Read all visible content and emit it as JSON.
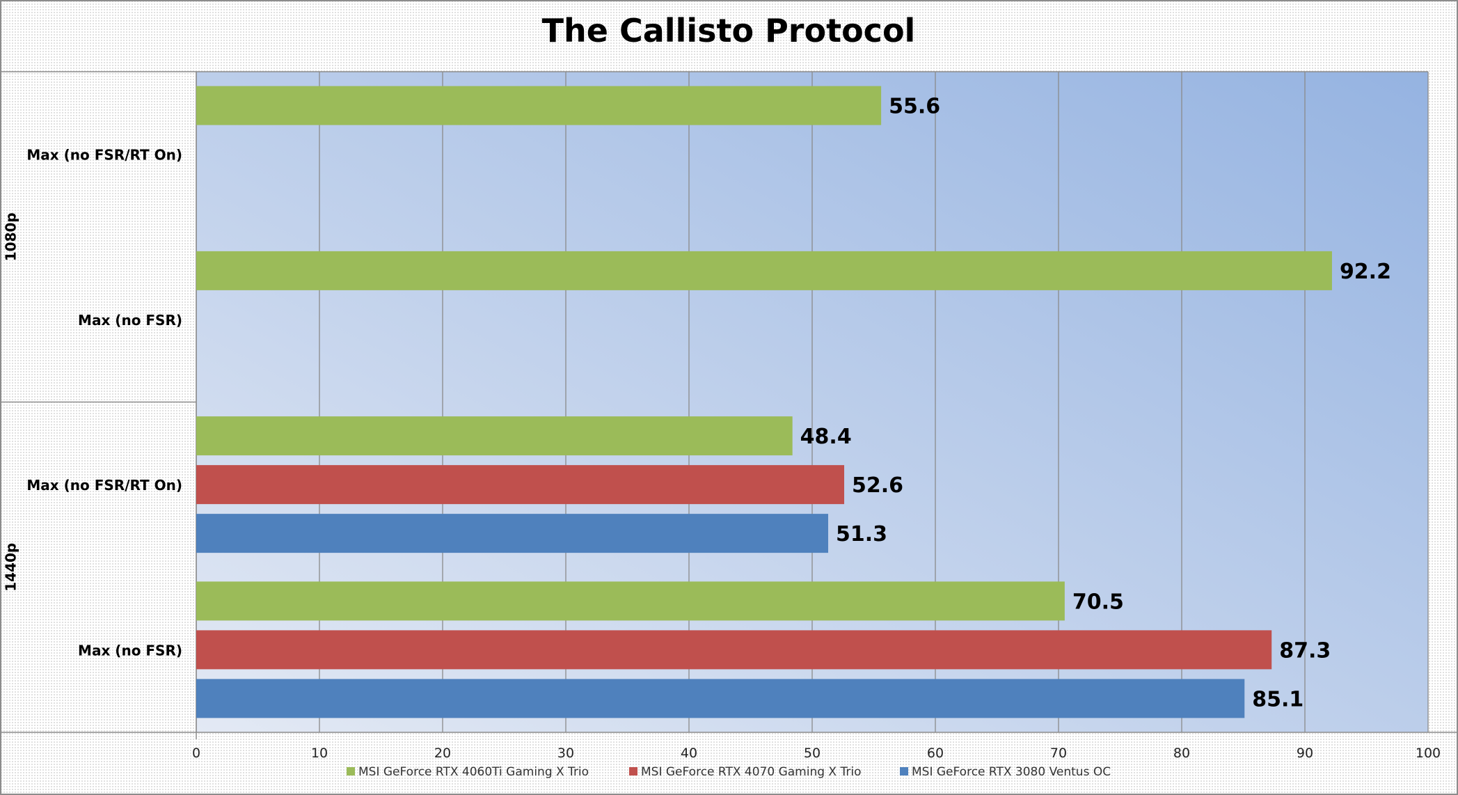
{
  "chart_data": {
    "type": "bar",
    "orientation": "horizontal",
    "title": "The Callisto Protocol",
    "xlim": [
      0,
      100
    ],
    "x_ticks": [
      "0",
      "10",
      "20",
      "30",
      "40",
      "50",
      "60",
      "70",
      "80",
      "90",
      "100"
    ],
    "grid": true,
    "legend_position": "bottom",
    "groups": [
      {
        "label": "1080p",
        "categories": [
          {
            "label": "Max (no FSR/RT On)",
            "bars": [
              {
                "series": "MSI GeForce RTX 4060Ti Gaming X Trio",
                "value": 55.6,
                "label": "55.6"
              }
            ]
          },
          {
            "label": "Max (no FSR)",
            "bars": [
              {
                "series": "MSI GeForce RTX 4060Ti Gaming X Trio",
                "value": 92.2,
                "label": "92.2"
              }
            ]
          }
        ]
      },
      {
        "label": "1440p",
        "categories": [
          {
            "label": "Max (no FSR/RT On)",
            "bars": [
              {
                "series": "MSI GeForce RTX 4060Ti Gaming X Trio",
                "value": 48.4,
                "label": "48.4"
              },
              {
                "series": "MSI GeForce RTX 4070 Gaming X Trio",
                "value": 52.6,
                "label": "52.6"
              },
              {
                "series": "MSI GeForce RTX 3080 Ventus OC",
                "value": 51.3,
                "label": "51.3"
              }
            ]
          },
          {
            "label": "Max (no FSR)",
            "bars": [
              {
                "series": "MSI GeForce RTX 4060Ti Gaming X Trio",
                "value": 70.5,
                "label": "70.5"
              },
              {
                "series": "MSI GeForce RTX 4070 Gaming X Trio",
                "value": 87.3,
                "label": "87.3"
              },
              {
                "series": "MSI GeForce RTX 3080 Ventus OC",
                "value": 85.1,
                "label": "85.1"
              }
            ]
          }
        ]
      }
    ],
    "series": [
      {
        "name": "MSI GeForce RTX 4060Ti Gaming X Trio",
        "color": "#9BBB59"
      },
      {
        "name": "MSI GeForce RTX 4070 Gaming X Trio",
        "color": "#C0504D"
      },
      {
        "name": "MSI GeForce RTX 3080 Ventus OC",
        "color": "#4F81BD"
      }
    ],
    "plot_background_gradient": [
      "#95B3E1",
      "#E3E9F4"
    ]
  }
}
